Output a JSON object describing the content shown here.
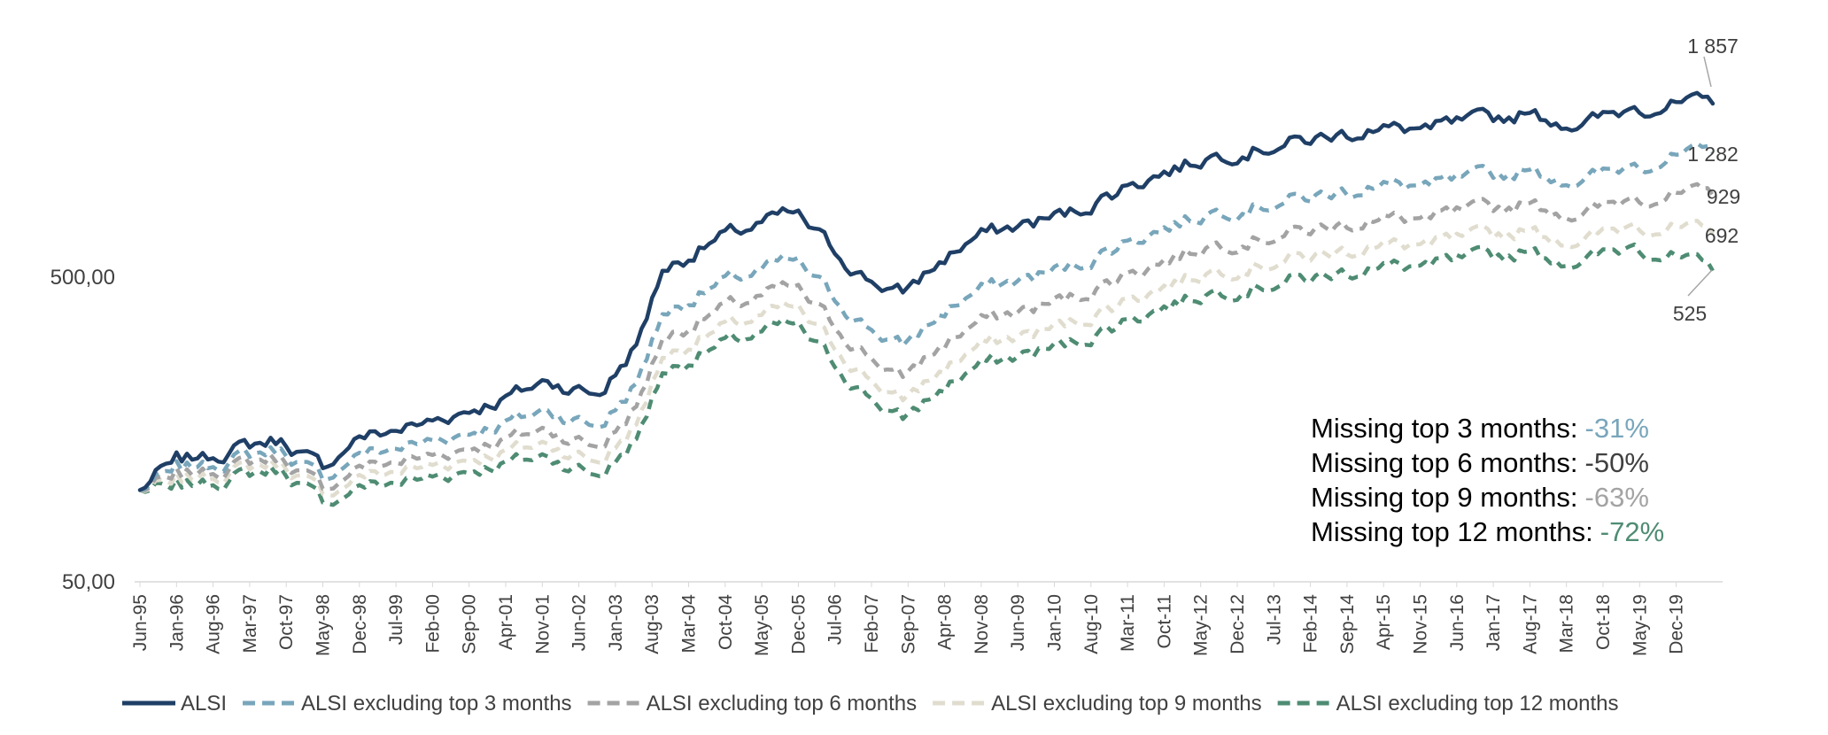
{
  "chart_data": {
    "type": "line",
    "y_scale": "log",
    "ylim": [
      50,
      3000
    ],
    "yticks": [
      {
        "value": 50,
        "label": "50,00"
      },
      {
        "value": 500,
        "label": "500,00"
      }
    ],
    "x_labels": [
      "Jun-95",
      "Jan-96",
      "Aug-96",
      "Mar-97",
      "Oct-97",
      "May-98",
      "Dec-98",
      "Jul-99",
      "Feb-00",
      "Sep-00",
      "Apr-01",
      "Nov-01",
      "Jun-02",
      "Jan-03",
      "Aug-03",
      "Mar-04",
      "Oct-04",
      "May-05",
      "Dec-05",
      "Jul-06",
      "Feb-07",
      "Sep-07",
      "Apr-08",
      "Nov-08",
      "Jun-09",
      "Jan-10",
      "Aug-10",
      "Mar-11",
      "Oct-11",
      "May-12",
      "Dec-12",
      "Jul-13",
      "Feb-14",
      "Sep-14",
      "Apr-15",
      "Nov-15",
      "Jun-16",
      "Jan-17",
      "Aug-17",
      "Mar-18",
      "Oct-18",
      "May-19",
      "Dec-19"
    ],
    "x_step_months": 7,
    "anchor_months": [
      0,
      6,
      11,
      23,
      27,
      35,
      38,
      41,
      54,
      69,
      78,
      88,
      95,
      100,
      110,
      125,
      139,
      146,
      153,
      160,
      179,
      190,
      205,
      227,
      235,
      247,
      265,
      276,
      286,
      301
    ],
    "series": [
      {
        "name": "ALSI",
        "color": "#1f3f66",
        "dash": "solid",
        "values": [
          100,
          123,
          127,
          143,
          147,
          118,
          128,
          147,
          165,
          198,
          228,
          205,
          300,
          525,
          660,
          815,
          492,
          445,
          560,
          680,
          820,
          1020,
          1250,
          1440,
          1520,
          1540,
          1720,
          1580,
          1810,
          1857
        ]
      },
      {
        "name": "ALSI excluding top 3 months",
        "color": "#78a6bb",
        "dash": "dashed",
        "values": [
          100,
          115,
          119,
          133,
          137,
          108,
          115,
          130,
          143,
          165,
          183,
          161,
          224,
          378,
          468,
          570,
          344,
          298,
          375,
          450,
          545,
          670,
          820,
          930,
          990,
          1000,
          1120,
          1030,
          1180,
          1282
        ]
      },
      {
        "name": "ALSI excluding top 6 months",
        "color": "#a3a3a3",
        "dash": "dashed",
        "values": [
          100,
          109,
          113,
          126,
          129,
          101,
          105,
          118,
          128,
          146,
          158,
          138,
          188,
          313,
          384,
          465,
          278,
          235,
          295,
          355,
          430,
          525,
          640,
          725,
          770,
          780,
          870,
          800,
          920,
          929
        ]
      },
      {
        "name": "ALSI excluding top 9 months",
        "color": "#e0ddcf",
        "dash": "dashed",
        "values": [
          100,
          105,
          109,
          121,
          124,
          97,
          99,
          110,
          119,
          133,
          142,
          123,
          164,
          272,
          332,
          400,
          236,
          197,
          245,
          295,
          355,
          432,
          525,
          595,
          630,
          640,
          710,
          655,
          750,
          692
        ]
      },
      {
        "name": "ALSI excluding top 12 months",
        "color": "#4e8c73",
        "dash": "dashed",
        "values": [
          100,
          101,
          104,
          115,
          118,
          91,
          92,
          102,
          109,
          122,
          129,
          111,
          147,
          242,
          294,
          352,
          206,
          171,
          212,
          255,
          305,
          370,
          448,
          505,
          535,
          545,
          605,
          560,
          640,
          525
        ]
      }
    ],
    "end_labels": [
      "1 857",
      "1 282",
      "929",
      "692",
      "525"
    ],
    "annotations": [
      {
        "label": "Missing top 3 months:",
        "value": "-31%",
        "color": "#78a6bb"
      },
      {
        "label": "Missing top 6 months:",
        "value": "-50%",
        "color": "#404040"
      },
      {
        "label": "Missing top 9 months:",
        "value": "-63%",
        "color": "#a3a3a3"
      },
      {
        "label": "Missing top 12 months:",
        "value": "-72%",
        "color": "#4e8c73"
      }
    ],
    "legend_position": "bottom",
    "grid": false
  }
}
